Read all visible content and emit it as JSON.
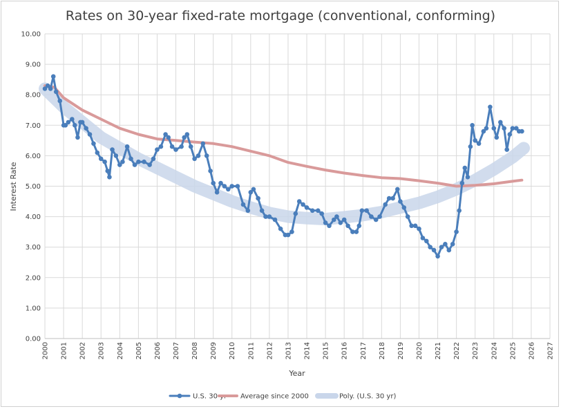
{
  "chart_data": {
    "type": "line",
    "title": "Rates on 30-year fixed-rate mortgage (conventional, conforming)",
    "xlabel": "Year",
    "ylabel": "Interest Rate",
    "xlim": [
      2000,
      2027
    ],
    "ylim": [
      0,
      10
    ],
    "x_ticks": [
      "2000",
      "2001",
      "2002",
      "2003",
      "2004",
      "2005",
      "2006",
      "2007",
      "2008",
      "2009",
      "2010",
      "2011",
      "2012",
      "2013",
      "2014",
      "2015",
      "2016",
      "2017",
      "2018",
      "2019",
      "2020",
      "2021",
      "2022",
      "2023",
      "2024",
      "2025",
      "2026",
      "2027"
    ],
    "y_ticks": [
      "0.00",
      "1.00",
      "2.00",
      "3.00",
      "4.00",
      "5.00",
      "6.00",
      "7.00",
      "8.00",
      "9.00",
      "10.00"
    ],
    "grid": true,
    "legend_position": "bottom",
    "series": [
      {
        "name": "U.S. 30 yr",
        "color": "#4a7ebb",
        "style": "line-markers",
        "x": [
          2000.0,
          2000.15,
          2000.3,
          2000.45,
          2000.6,
          2000.8,
          2001.0,
          2001.1,
          2001.25,
          2001.45,
          2001.6,
          2001.75,
          2001.9,
          2002.0,
          2002.2,
          2002.4,
          2002.6,
          2002.8,
          2003.0,
          2003.2,
          2003.35,
          2003.45,
          2003.6,
          2003.8,
          2004.0,
          2004.15,
          2004.4,
          2004.6,
          2004.8,
          2005.0,
          2005.3,
          2005.6,
          2005.8,
          2006.0,
          2006.2,
          2006.45,
          2006.6,
          2006.8,
          2007.0,
          2007.3,
          2007.45,
          2007.6,
          2007.8,
          2008.0,
          2008.2,
          2008.45,
          2008.65,
          2008.85,
          2009.0,
          2009.2,
          2009.4,
          2009.6,
          2009.8,
          2010.0,
          2010.3,
          2010.6,
          2010.85,
          2011.0,
          2011.15,
          2011.4,
          2011.6,
          2011.8,
          2012.0,
          2012.3,
          2012.6,
          2012.85,
          2013.0,
          2013.2,
          2013.4,
          2013.6,
          2013.8,
          2014.0,
          2014.3,
          2014.6,
          2014.8,
          2015.0,
          2015.2,
          2015.45,
          2015.6,
          2015.8,
          2016.0,
          2016.2,
          2016.45,
          2016.65,
          2016.8,
          2016.95,
          2017.2,
          2017.45,
          2017.7,
          2017.9,
          2018.2,
          2018.4,
          2018.6,
          2018.85,
          2019.0,
          2019.2,
          2019.4,
          2019.6,
          2019.8,
          2020.0,
          2020.2,
          2020.4,
          2020.6,
          2020.8,
          2021.0,
          2021.2,
          2021.4,
          2021.6,
          2021.8,
          2022.0,
          2022.15,
          2022.3,
          2022.45,
          2022.6,
          2022.75,
          2022.85,
          2023.0,
          2023.2,
          2023.45,
          2023.6,
          2023.8,
          2024.0,
          2024.15,
          2024.35,
          2024.55,
          2024.7,
          2024.85,
          2025.0,
          2025.2,
          2025.35,
          2025.5
        ],
        "values": [
          8.2,
          8.3,
          8.2,
          8.6,
          8.1,
          7.8,
          7.0,
          7.0,
          7.1,
          7.2,
          7.0,
          6.6,
          7.1,
          7.1,
          6.9,
          6.7,
          6.4,
          6.1,
          5.9,
          5.8,
          5.5,
          5.3,
          6.2,
          6.0,
          5.7,
          5.8,
          6.3,
          5.9,
          5.7,
          5.8,
          5.8,
          5.7,
          5.9,
          6.2,
          6.3,
          6.7,
          6.6,
          6.3,
          6.2,
          6.3,
          6.6,
          6.7,
          6.3,
          5.9,
          6.0,
          6.4,
          6.0,
          5.5,
          5.1,
          4.8,
          5.1,
          5.0,
          4.9,
          5.0,
          5.0,
          4.4,
          4.2,
          4.8,
          4.9,
          4.6,
          4.2,
          4.0,
          4.0,
          3.9,
          3.6,
          3.4,
          3.4,
          3.5,
          4.1,
          4.5,
          4.4,
          4.3,
          4.2,
          4.2,
          4.1,
          3.8,
          3.7,
          3.9,
          4.0,
          3.8,
          3.9,
          3.7,
          3.5,
          3.5,
          3.7,
          4.2,
          4.2,
          4.0,
          3.9,
          4.0,
          4.4,
          4.6,
          4.6,
          4.9,
          4.5,
          4.3,
          4.0,
          3.7,
          3.7,
          3.6,
          3.3,
          3.2,
          3.0,
          2.9,
          2.7,
          3.0,
          3.1,
          2.9,
          3.1,
          3.5,
          4.2,
          5.1,
          5.6,
          5.3,
          6.3,
          7.0,
          6.5,
          6.4,
          6.8,
          6.9,
          7.6,
          6.9,
          6.6,
          7.1,
          6.9,
          6.2,
          6.7,
          6.9,
          6.9,
          6.8,
          6.8
        ]
      },
      {
        "name": "Average since 2000",
        "color": "#d99a9a",
        "style": "line",
        "x": [
          2000.0,
          2000.5,
          2001.0,
          2002.0,
          2003.0,
          2004.0,
          2005.0,
          2006.0,
          2007.0,
          2008.0,
          2009.0,
          2010.0,
          2011.0,
          2012.0,
          2013.0,
          2014.0,
          2015.0,
          2016.0,
          2017.0,
          2018.0,
          2019.0,
          2020.0,
          2021.0,
          2022.0,
          2023.0,
          2024.0,
          2025.0,
          2025.5
        ],
        "values": [
          8.3,
          8.25,
          7.9,
          7.5,
          7.2,
          6.9,
          6.7,
          6.55,
          6.5,
          6.45,
          6.4,
          6.3,
          6.15,
          6.0,
          5.78,
          5.65,
          5.53,
          5.43,
          5.35,
          5.28,
          5.25,
          5.18,
          5.1,
          5.0,
          5.03,
          5.08,
          5.16,
          5.2
        ]
      },
      {
        "name": "Poly. (U.S. 30 yr)",
        "color": "#c9d6ea",
        "style": "line",
        "x": [
          2000.0,
          2001.0,
          2002.0,
          2003.0,
          2004.0,
          2005.0,
          2006.0,
          2007.0,
          2008.0,
          2009.0,
          2010.0,
          2011.0,
          2012.0,
          2013.0,
          2014.0,
          2015.0,
          2016.0,
          2017.0,
          2018.0,
          2019.0,
          2020.0,
          2021.0,
          2022.0,
          2023.0,
          2024.0,
          2025.0,
          2025.6
        ],
        "values": [
          8.2,
          7.6,
          7.1,
          6.6,
          6.25,
          5.9,
          5.6,
          5.3,
          5.0,
          4.75,
          4.5,
          4.3,
          4.12,
          4.0,
          3.95,
          3.92,
          3.98,
          4.05,
          4.15,
          4.3,
          4.45,
          4.65,
          4.9,
          5.2,
          5.55,
          5.95,
          6.25
        ]
      }
    ]
  }
}
